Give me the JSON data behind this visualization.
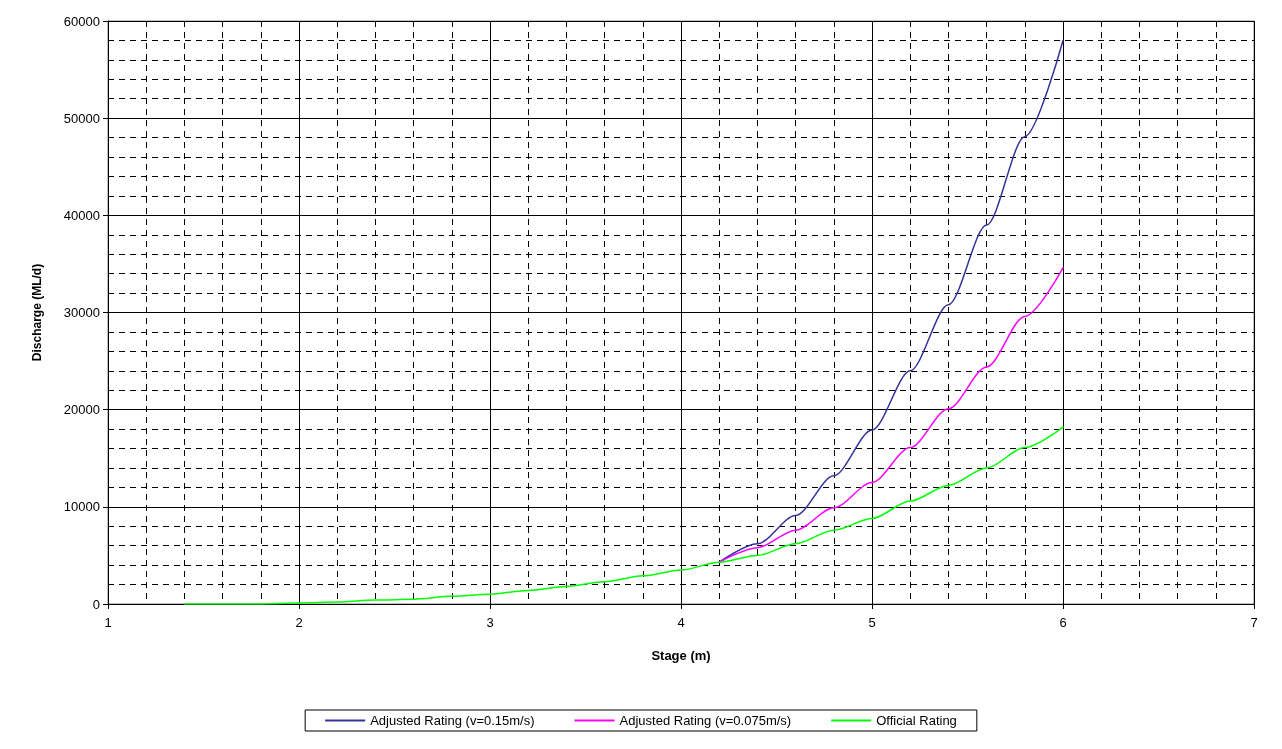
{
  "chart_data": {
    "type": "line",
    "xlabel": "Stage (m)",
    "ylabel": "Discharge (ML/d)",
    "xlim": [
      1,
      7
    ],
    "xticks": [
      1,
      2,
      3,
      4,
      5,
      6,
      7
    ],
    "ylim": [
      0,
      60000
    ],
    "yticks": [
      0,
      10000,
      20000,
      30000,
      40000,
      50000,
      60000
    ],
    "grid": true,
    "legend": "bottom",
    "marker": "none",
    "line_style": "solid",
    "series": [
      {
        "name": "Adjusted Rating (v=0.15m/s)",
        "color": "#333399",
        "x": [
          4.2,
          4.4,
          4.6,
          4.8,
          5.0,
          5.2,
          5.4,
          5.6,
          5.8,
          6.0
        ],
        "values": [
          4300,
          6200,
          9100,
          13200,
          17900,
          24000,
          30800,
          39000,
          48100,
          58000
        ]
      },
      {
        "name": "Adjusted Rating (v=0.075m/s)",
        "color": "#ff00ff",
        "x": [
          4.2,
          4.4,
          4.6,
          4.8,
          5.0,
          5.2,
          5.4,
          5.6,
          5.8,
          6.0
        ],
        "values": [
          4300,
          5800,
          7600,
          9900,
          12500,
          16100,
          20100,
          24400,
          29600,
          34600
        ]
      },
      {
        "name": "Official Rating",
        "color": "#00ff00",
        "x": [
          1.4,
          1.6,
          1.8,
          2.0,
          2.2,
          2.4,
          2.6,
          2.8,
          3.0,
          3.2,
          3.4,
          3.6,
          3.8,
          4.0,
          4.2,
          4.4,
          4.6,
          4.8,
          5.0,
          5.2,
          5.4,
          5.6,
          5.8,
          6.0
        ],
        "values": [
          0,
          0,
          0,
          100,
          200,
          400,
          500,
          800,
          1000,
          1400,
          1800,
          2300,
          2900,
          3500,
          4300,
          5000,
          6200,
          7600,
          8800,
          10600,
          12200,
          14000,
          16100,
          18200
        ]
      }
    ]
  }
}
